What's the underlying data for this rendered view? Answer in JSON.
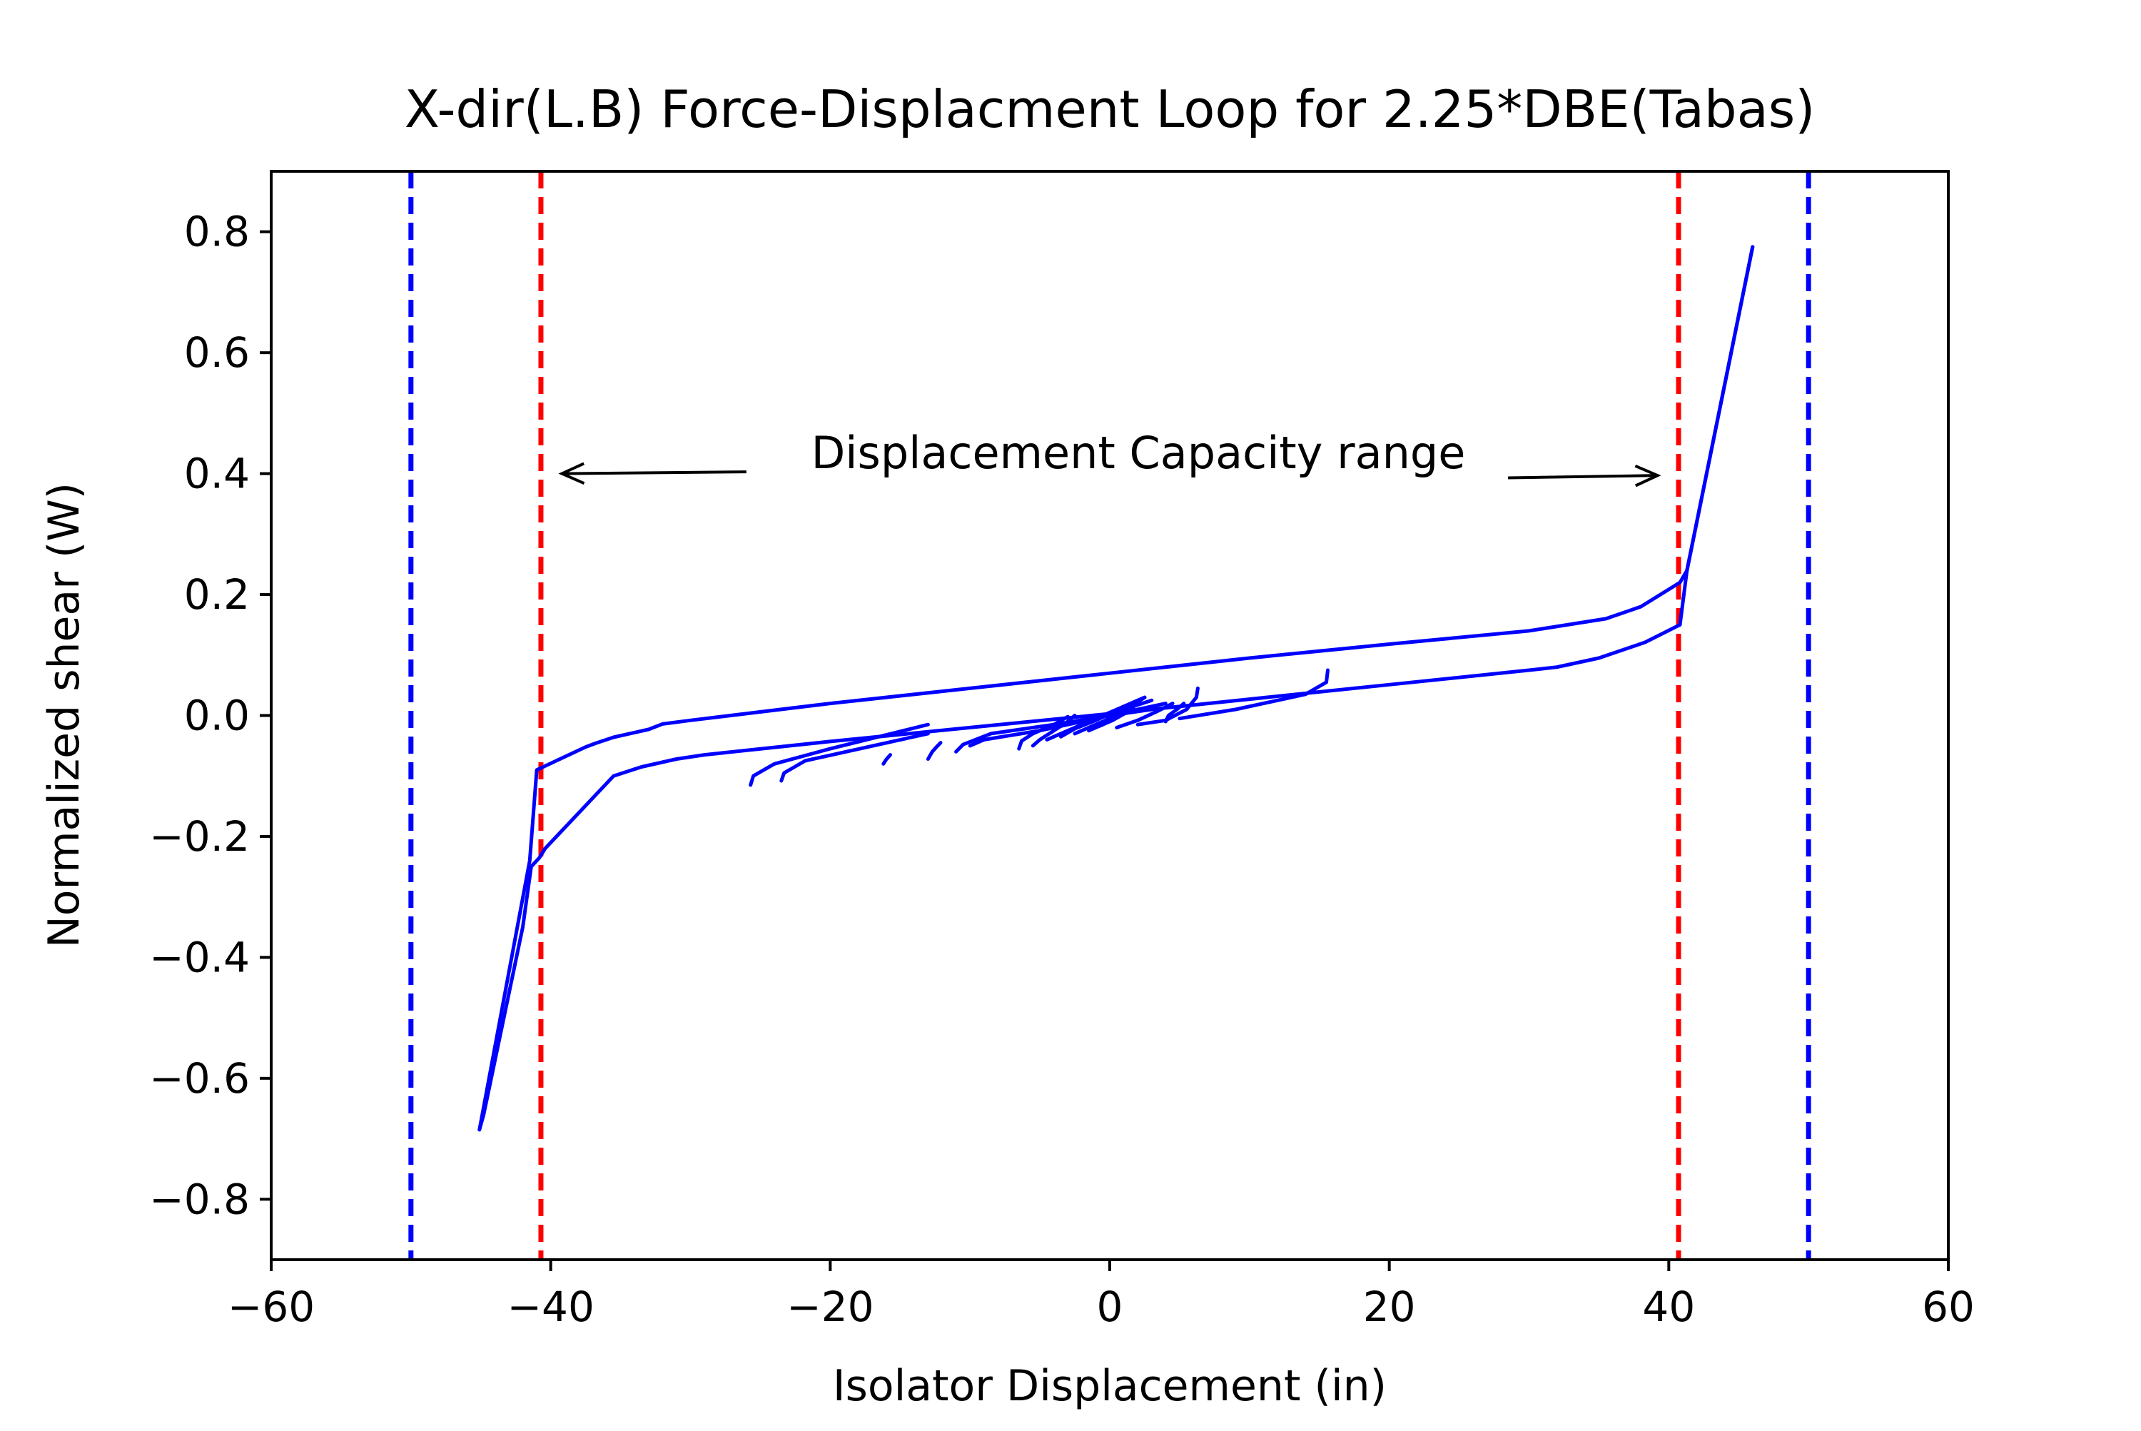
{
  "chart_data": {
    "type": "line",
    "title": "X-dir(L.B) Force-Displacment Loop for 2.25*DBE(Tabas)",
    "xlabel": "Isolator Displacement (in)",
    "ylabel": "Normalized shear (W)",
    "xlim": [
      -60,
      60
    ],
    "ylim": [
      -0.9,
      0.9
    ],
    "xticks": [
      -60,
      -40,
      -20,
      0,
      20,
      40,
      60
    ],
    "xtick_labels": [
      "−60",
      "−40",
      "−20",
      "0",
      "20",
      "40",
      "60"
    ],
    "yticks": [
      0.8,
      0.6,
      0.4,
      0.2,
      0.0,
      -0.2,
      -0.4,
      -0.6,
      -0.8
    ],
    "ytick_labels": [
      "0.8",
      "0.6",
      "0.4",
      "0.2",
      "0.0",
      "−0.2",
      "−0.4",
      "−0.6",
      "−0.8"
    ],
    "grid": false,
    "legend": "none",
    "annotation": {
      "text": "Displacement Capacity range",
      "arrow_left_tip": [
        -39.2,
        0.4
      ],
      "arrow_left_tail": [
        -26,
        0.403
      ],
      "arrow_right_tip": [
        39.2,
        0.397
      ],
      "arrow_right_tail": [
        28.5,
        0.393
      ]
    },
    "vlines": [
      {
        "x": -50,
        "color": "#0000ff",
        "style": "dashed"
      },
      {
        "x": 50,
        "color": "#0000ff",
        "style": "dashed"
      },
      {
        "x": -40.7,
        "color": "#ff0000",
        "style": "dashed"
      },
      {
        "x": 40.7,
        "color": "#ff0000",
        "style": "dashed"
      }
    ],
    "series": [
      {
        "color": "#0000ff",
        "paths": [
          {
            "x": [
              -45.1,
              -44.8,
              -42.0,
              -41.4,
              -40.8,
              -40.4,
              -35.5,
              -33.5,
              -31.0,
              -29.0,
              -20.0,
              -10.0,
              0.0,
              10.0,
              20.0,
              30.0,
              32.0,
              32.4,
              35.0,
              38.3,
              40.8,
              41.3,
              46.0
            ],
            "y": [
              -0.685,
              -0.66,
              -0.35,
              -0.25,
              -0.235,
              -0.22,
              -0.1,
              -0.085,
              -0.072,
              -0.065,
              -0.043,
              -0.02,
              0.003,
              0.027,
              0.051,
              0.075,
              0.08,
              0.082,
              0.095,
              0.121,
              0.15,
              0.24,
              0.775
            ]
          },
          {
            "x": [
              46.0,
              41.3,
              40.8,
              38.0,
              35.5,
              30.0,
              20.0,
              10.0,
              0.0,
              -10.0,
              -20.0,
              -30.0,
              -32.0,
              -33.0,
              -35.5,
              -36.8,
              -37.5,
              -41.0,
              -41.5,
              -45.1
            ],
            "y": [
              0.775,
              0.24,
              0.22,
              0.18,
              0.16,
              0.14,
              0.118,
              0.095,
              0.07,
              0.045,
              0.02,
              -0.008,
              -0.014,
              -0.023,
              -0.036,
              -0.046,
              -0.052,
              -0.09,
              -0.24,
              -0.685
            ]
          },
          {
            "x": [
              -25.7,
              -25.5,
              -24.0,
              -20.0,
              -13.0
            ],
            "y": [
              -0.115,
              -0.1,
              -0.08,
              -0.055,
              -0.015
            ]
          },
          {
            "x": [
              -23.5,
              -23.3,
              -21.8,
              -13.0
            ],
            "y": [
              -0.108,
              -0.095,
              -0.075,
              -0.03
            ]
          },
          {
            "x": [
              -16.2,
              -16.0,
              -15.7
            ],
            "y": [
              -0.08,
              -0.073,
              -0.065
            ]
          },
          {
            "x": [
              -13.0,
              -12.7,
              -12.4,
              -12.1
            ],
            "y": [
              -0.072,
              -0.06,
              -0.052,
              -0.045
            ]
          },
          {
            "x": [
              -11.0,
              -10.5,
              -8.5,
              -4.0,
              0.0,
              3.0
            ],
            "y": [
              -0.06,
              -0.048,
              -0.03,
              -0.015,
              0.0,
              0.01
            ]
          },
          {
            "x": [
              -10.0,
              -9.0,
              -5.0,
              -2.0,
              2.0,
              4.0
            ],
            "y": [
              -0.05,
              -0.04,
              -0.025,
              -0.01,
              0.01,
              0.02
            ]
          },
          {
            "x": [
              -6.5,
              -6.3,
              -5.5,
              -4.0,
              -3.0
            ],
            "y": [
              -0.055,
              -0.042,
              -0.03,
              -0.015,
              -0.002
            ]
          },
          {
            "x": [
              -5.5,
              -5.0,
              -4.0,
              -3.0,
              -2.5
            ],
            "y": [
              -0.05,
              -0.04,
              -0.025,
              -0.01,
              0.0
            ]
          },
          {
            "x": [
              -4.5,
              -3.5,
              -2.0,
              0.0,
              1.5,
              2.5
            ],
            "y": [
              -0.04,
              -0.03,
              -0.015,
              0.005,
              0.02,
              0.03
            ]
          },
          {
            "x": [
              -3.5,
              -2.5,
              -1.0,
              0.5,
              2.0
            ],
            "y": [
              -0.035,
              -0.022,
              -0.008,
              0.008,
              0.025
            ]
          },
          {
            "x": [
              -2.5,
              -1.5,
              0.0,
              1.0,
              3.0
            ],
            "y": [
              -0.03,
              -0.02,
              -0.005,
              0.01,
              0.025
            ]
          },
          {
            "x": [
              -1.5,
              -0.5,
              0.5,
              1.5,
              2.5
            ],
            "y": [
              -0.025,
              -0.015,
              0.0,
              0.015,
              0.03
            ]
          },
          {
            "x": [
              -0.8,
              0.2,
              1.2,
              2.0
            ],
            "y": [
              -0.018,
              -0.008,
              0.005,
              0.02
            ]
          },
          {
            "x": [
              0.5,
              2.0,
              3.5,
              4.5
            ],
            "y": [
              -0.02,
              -0.008,
              0.008,
              0.02
            ]
          },
          {
            "x": [
              4.0,
              4.2,
              4.8,
              5.3
            ],
            "y": [
              -0.01,
              0.0,
              0.01,
              0.02
            ]
          },
          {
            "x": [
              2.0,
              4.0,
              5.5,
              6.2,
              6.3
            ],
            "y": [
              -0.015,
              -0.008,
              0.01,
              0.03,
              0.045
            ]
          },
          {
            "x": [
              5.0,
              9.0,
              14.0,
              15.5,
              15.6
            ],
            "y": [
              -0.005,
              0.01,
              0.035,
              0.055,
              0.075
            ]
          }
        ]
      }
    ]
  }
}
